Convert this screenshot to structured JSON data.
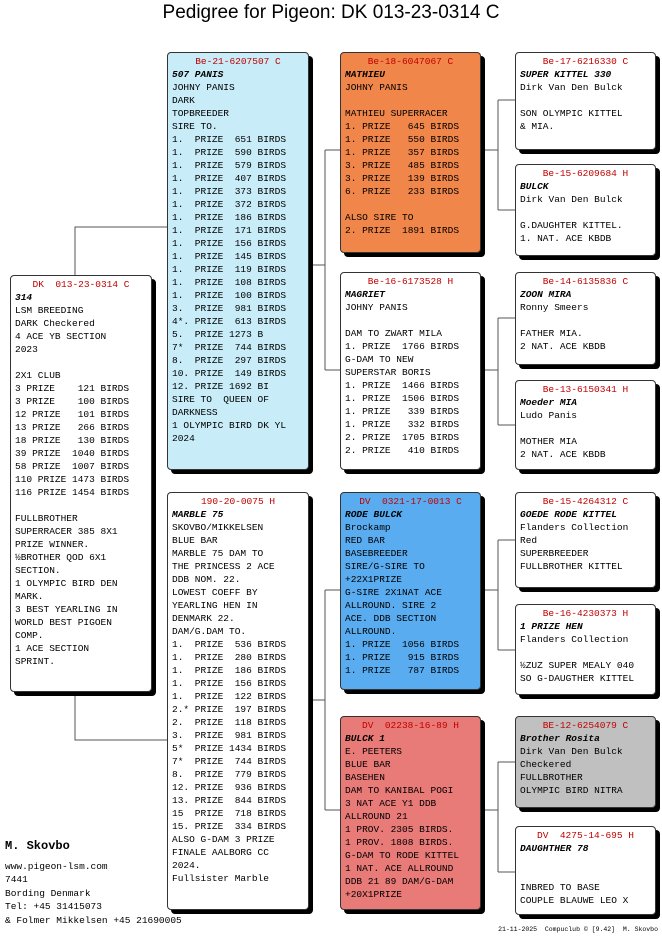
{
  "title": "Pedigree for Pigeon: DK  013-23-0314 C",
  "boxes": [
    {
      "id": "DK  013-23-0314 C",
      "name": "314",
      "color": "#ffffff",
      "sections": [
        [
          "LSM BREEDING",
          "DARK Checkered",
          "4 ACE YB SECTION",
          "2023"
        ],
        [
          "2X1 CLUB",
          "3 PRIZE    121 BIRDS",
          "3 PRIZE    100 BIRDS",
          "12 PRIZE   101 BIRDS",
          "13 PRIZE   266 BIRDS",
          "18 PRIZE   130 BIRDS",
          "39 PRIZE  1040 BIRDS",
          "58 PRIZE  1007 BIRDS",
          "110 PRIZE 1473 BIRDS",
          "116 PRIZE 1454 BIRDS"
        ],
        [
          "FULLBROTHER",
          "SUPERRACER 385 8X1",
          "PRIZE WINNER.",
          "½BROTHER QOD 6X1",
          "SECTION.",
          "1 OLYMPIC BIRD DEN",
          "MARK.",
          "3 BEST YEARLING IN",
          "WORLD BEST PIGOEN",
          "COMP.",
          "1 ACE SECTION",
          "SPRINT."
        ]
      ]
    },
    {
      "id": "Be-21-6207507 C",
      "name": "507 PANIS",
      "color": "#c8ecf8",
      "sections": [
        [
          "JOHNY PANIS",
          "DARK",
          "TOPBREEDER",
          "SIRE TO.",
          "1.  PRIZE  651 BIRDS",
          "1.  PRIZE  590 BIRDS",
          "1.  PRIZE  579 BIRDS",
          "1.  PRIZE  407 BIRDS",
          "1.  PRIZE  373 BIRDS",
          "1.  PRIZE  372 BIRDS",
          "1.  PRIZE  186 BIRDS",
          "1.  PRIZE  171 BIRDS",
          "1.  PRIZE  156 BIRDS",
          "1.  PRIZE  145 BIRDS",
          "1.  PRIZE  119 BIRDS",
          "1.  PRIZE  108 BIRDS",
          "1.  PRIZE  100 BIRDS",
          "3.  PRIZE  981 BIRDS",
          "4*. PRIZE  613 BIRDS",
          "5.  PRIZE 1273 B",
          "7*  PRIZE  744 BIRDS",
          "8.  PRIZE  297 BIRDS",
          "10. PRIZE  149 BIRDS",
          "12. PRIZE 1692 BI",
          "SIRE TO  QUEEN OF",
          "DARKNESS",
          "1 OLYMPIC BIRD DK YL",
          "2024"
        ]
      ]
    },
    {
      "id": "190-20-0075 H",
      "name": "MARBLE 75",
      "color": "#ffffff",
      "sections": [
        [
          "SKOVBO/MIKKELSEN",
          "BLUE BAR",
          "MARBLE 75 DAM TO",
          "THE PRINCESS 2 ACE",
          "DDB NOM. 22.",
          "LOWEST COEFF BY",
          "YEARLING HEN IN",
          "DENMARK 22.",
          "DAM/G.DAM TO.",
          "1.  PRIZE  536 BIRDS",
          "1.  PRIZE  280 BIRDS",
          "1.  PRIZE  186 BIRDS",
          "1.  PRIZE  156 BIRDS",
          "1.  PRIZE  122 BIRDS",
          "2.* PRIZE  197 BIRDS",
          "2.  PRIZE  118 BIRDS",
          "3.  PRIZE  981 BIRDS",
          "5*  PRIZE 1434 BIRDS",
          "7*  PRIZE  744 BIRDS",
          "8.  PRIZE  779 BIRDS",
          "12. PRIZE  936 BIRDS",
          "13. PRIZE  844 BIRDS",
          "15  PRIZE  718 BIRDS",
          "15. PRIZE  334 BIRDS",
          "ALSO G-DAM 3 PRIZE",
          "FINALE AALBORG CC",
          "2024.",
          "Fullsister Marble"
        ]
      ]
    },
    {
      "id": "Be-18-6047067 C",
      "name": "MATHIEU",
      "color": "#f0864a",
      "sections": [
        [
          "JOHNY PANIS"
        ],
        [
          "MATHIEU SUPERRACER",
          "1. PRIZE   645 BIRDS",
          "1. PRIZE   550 BIRDS",
          "1. PRIZE   357 BIRDS",
          "3. PRIZE   485 BIRDS",
          "3. PRIZE   139 BIRDS",
          "6. PRIZE   233 BIRDS"
        ],
        [
          "ALSO SIRE TO",
          "2. PRIZE  1891 BIRDS"
        ]
      ]
    },
    {
      "id": "Be-16-6173528 H",
      "name": "MAGRIET",
      "color": "#ffffff",
      "sections": [
        [
          "JOHNY PANIS"
        ],
        [
          "DAM TO ZWART MILA",
          "1. PRIZE  1766 BIRDS",
          "G-DAM TO NEW",
          "SUPERSTAR BORIS",
          "1. PRIZE  1466 BIRDS",
          "1. PRIZE  1506 BIRDS",
          "1. PRIZE   339 BIRDS",
          "1. PRIZE   332 BIRDS",
          "2. PRIZE  1705 BIRDS",
          "2. PRIZE   410 BIRDS"
        ]
      ]
    },
    {
      "id": "DV  0321-17-0013 C",
      "name": "RODE BULCK",
      "color": "#5aacf0",
      "sections": [
        [
          "Brockamp",
          "RED BAR",
          "BASEBREEDER",
          "SIRE/G-SIRE TO",
          "+22X1PRIZE",
          "G-SIRE 2X1NAT ACE",
          "ALLROUND. SIRE 2",
          "ACE. DDB SECTION",
          "ALLROUND.",
          "1. PRIZE  1056 BIRDS",
          "1. PRIZE   915 BIRDS",
          "1. PRIZE   787 BIRDS"
        ]
      ]
    },
    {
      "id": "DV  02238-16-89 H",
      "name": "BULCK 1",
      "color": "#e87a78",
      "sections": [
        [
          "E. PEETERS",
          "BLUE BAR",
          "BASEHEN",
          "DAM TO KANIBAL POGI",
          "3 NAT ACE Y1 DDB",
          "ALLROUND 21",
          "1 PROV. 2305 BIRDS.",
          "1 PROV. 1808 BIRDS.",
          "G-DAM TO RODE KITTEL",
          "1 NAT. ACE ALLROUND",
          "DDB 21 89 DAM/G-DAM",
          "+20X1PRIZE"
        ]
      ]
    },
    {
      "id": "Be-17-6216330 C",
      "name": "SUPER KITTEL 330",
      "color": "#ffffff",
      "sections": [
        [
          "Dirk Van Den Bulck"
        ],
        [
          "SON OLYMPIC KITTEL",
          "& MIA."
        ]
      ]
    },
    {
      "id": "Be-15-6209684 H",
      "name": "BULCK",
      "color": "#ffffff",
      "sections": [
        [
          "Dirk Van Den Bulck"
        ],
        [
          "G.DAUGHTER KITTEL.",
          "1. NAT. ACE KBDB"
        ]
      ]
    },
    {
      "id": "Be-14-6135836 C",
      "name": "ZOON MIRA",
      "color": "#ffffff",
      "sections": [
        [
          "Ronny Smeers"
        ],
        [
          "FATHER MIA.",
          "2 NAT. ACE KBDB"
        ]
      ]
    },
    {
      "id": "Be-13-6150341 H",
      "name": "Moeder MIA",
      "color": "#ffffff",
      "sections": [
        [
          "Ludo Panis"
        ],
        [
          "MOTHER MIA",
          "2 NAT. ACE KBDB"
        ]
      ]
    },
    {
      "id": "Be-15-4264312 C",
      "name": "GOEDE RODE KITTEL",
      "color": "#ffffff",
      "sections": [
        [
          "Flanders Collection",
          "Red",
          "SUPERBREEDER",
          "FULLBROTHER KITTEL"
        ]
      ]
    },
    {
      "id": "Be-16-4230373 H",
      "name": "1 PRIZE HEN",
      "color": "#ffffff",
      "sections": [
        [
          "Flanders Collection"
        ],
        [
          "½ZUZ SUPER MEALY 040",
          "SO G-DAUGTHER KITTEL"
        ]
      ]
    },
    {
      "id": "BE-12-6254079 C",
      "name": "Brother Rosita",
      "color": "#c0c0c0",
      "sections": [
        [
          "Dirk Van Den Bulck",
          "Checkered",
          "FULLBROTHER",
          "OLYMPIC BIRD NITRA"
        ]
      ]
    },
    {
      "id": "DV  4275-14-695 H",
      "name": "DAUGHTHER 78",
      "color": "#ffffff",
      "sections": [
        [
          "INBRED TO BASE",
          "COUPLE BLAUWE LEO X"
        ]
      ]
    }
  ],
  "owner": {
    "name": "M. Skovbo",
    "lines": [
      "www.pigeon-lsm.com",
      "7441",
      "Bording Denmark",
      "Tel: +45 31415073",
      "& Folmer Mikkelsen +45 21690005"
    ]
  },
  "footer": "21-11-2025  Compuclub © [9.42]  M. Skovbo"
}
